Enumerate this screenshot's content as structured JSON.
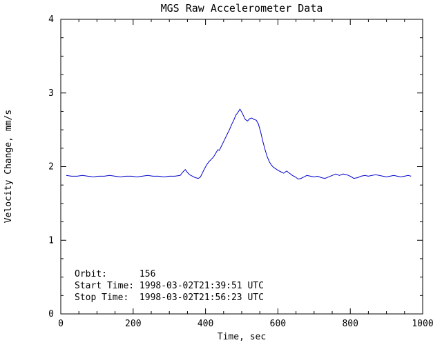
{
  "page": {
    "background": "#ffffff",
    "text_color": "#000000"
  },
  "chart_data": {
    "type": "line",
    "title": "MGS Raw Accelerometer Data",
    "xlabel": "Time, sec",
    "ylabel": "Velocity Change, mm/s",
    "xlim": [
      0,
      1000
    ],
    "ylim": [
      0,
      4
    ],
    "x_ticks": [
      0,
      200,
      400,
      600,
      800,
      1000
    ],
    "y_ticks": [
      0,
      1,
      2,
      3,
      4
    ],
    "x_minor_step": 50,
    "y_minor_step": 0.25,
    "grid": false,
    "legend": "none",
    "line_color": "#0000cc",
    "series": [
      {
        "name": "velocity_change_mm_s",
        "x": [
          15,
          30,
          45,
          60,
          75,
          90,
          105,
          120,
          135,
          150,
          165,
          180,
          195,
          210,
          225,
          240,
          255,
          270,
          285,
          300,
          315,
          330,
          338,
          344,
          350,
          356,
          364,
          372,
          380,
          386,
          392,
          398,
          404,
          410,
          416,
          422,
          428,
          434,
          438,
          444,
          450,
          456,
          460,
          466,
          472,
          478,
          484,
          490,
          495,
          500,
          505,
          510,
          516,
          522,
          528,
          534,
          540,
          546,
          552,
          558,
          564,
          570,
          576,
          582,
          588,
          594,
          600,
          608,
          616,
          624,
          632,
          640,
          648,
          656,
          664,
          672,
          680,
          690,
          700,
          710,
          720,
          730,
          740,
          750,
          760,
          770,
          780,
          790,
          800,
          810,
          820,
          830,
          840,
          850,
          860,
          870,
          880,
          890,
          900,
          910,
          920,
          930,
          940,
          950,
          960,
          968
        ],
        "y": [
          1.88,
          1.87,
          1.87,
          1.88,
          1.87,
          1.86,
          1.87,
          1.87,
          1.88,
          1.87,
          1.86,
          1.87,
          1.87,
          1.86,
          1.87,
          1.88,
          1.87,
          1.87,
          1.86,
          1.87,
          1.87,
          1.88,
          1.93,
          1.96,
          1.92,
          1.89,
          1.87,
          1.85,
          1.84,
          1.86,
          1.92,
          1.98,
          2.03,
          2.07,
          2.1,
          2.13,
          2.18,
          2.23,
          2.22,
          2.28,
          2.34,
          2.4,
          2.44,
          2.5,
          2.57,
          2.63,
          2.7,
          2.74,
          2.78,
          2.74,
          2.69,
          2.64,
          2.62,
          2.65,
          2.66,
          2.64,
          2.63,
          2.58,
          2.48,
          2.35,
          2.24,
          2.14,
          2.07,
          2.02,
          1.99,
          1.97,
          1.95,
          1.93,
          1.91,
          1.94,
          1.91,
          1.88,
          1.86,
          1.83,
          1.84,
          1.86,
          1.88,
          1.87,
          1.86,
          1.87,
          1.85,
          1.84,
          1.86,
          1.88,
          1.9,
          1.88,
          1.9,
          1.89,
          1.87,
          1.84,
          1.85,
          1.87,
          1.88,
          1.87,
          1.88,
          1.89,
          1.88,
          1.87,
          1.86,
          1.87,
          1.88,
          1.87,
          1.86,
          1.87,
          1.88,
          1.87
        ]
      }
    ],
    "annotations": [
      {
        "text": "Orbit:      156"
      },
      {
        "text": "Start Time: 1998-03-02T21:39:51 UTC"
      },
      {
        "text": "Stop Time:  1998-03-02T21:56:23 UTC"
      }
    ]
  }
}
